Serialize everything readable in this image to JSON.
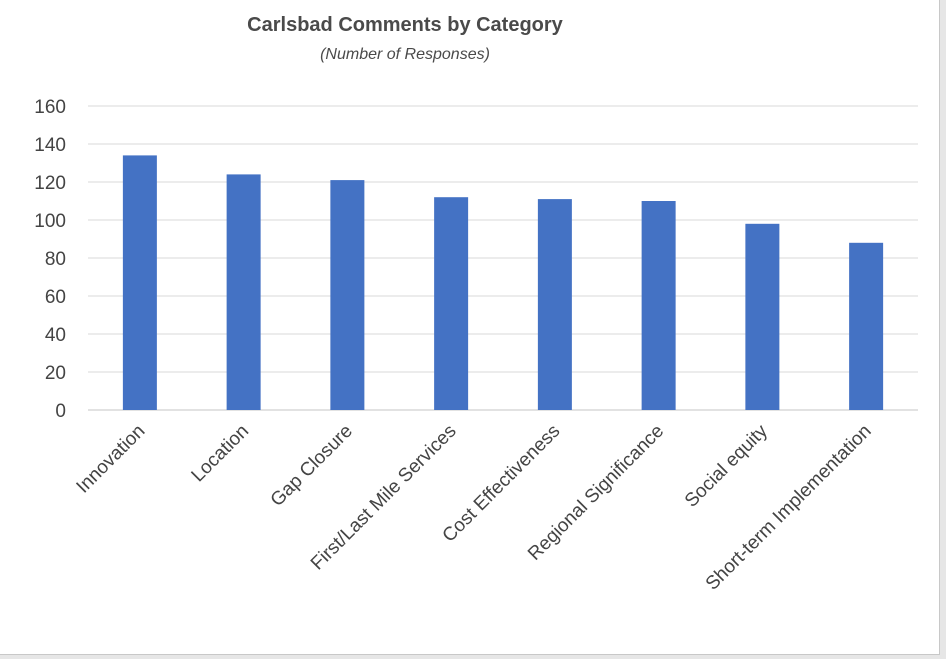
{
  "chart_data": {
    "type": "bar",
    "title": "Carlsbad Comments by Category",
    "subtitle": "(Number of Responses)",
    "categories": [
      "Innovation",
      "Location",
      "Gap Closure",
      "First/Last Mile Services",
      "Cost Effectiveness",
      "Regional Significance",
      "Social equity",
      "Short-term Implementation"
    ],
    "values": [
      134,
      124,
      121,
      112,
      111,
      110,
      98,
      88
    ],
    "ylim": [
      0,
      160
    ],
    "yticks": [
      0,
      20,
      40,
      60,
      80,
      100,
      120,
      140,
      160
    ],
    "grid": true,
    "legend": "none",
    "bar_color": "#4472c4",
    "grid_color": "#d9d9d9"
  }
}
